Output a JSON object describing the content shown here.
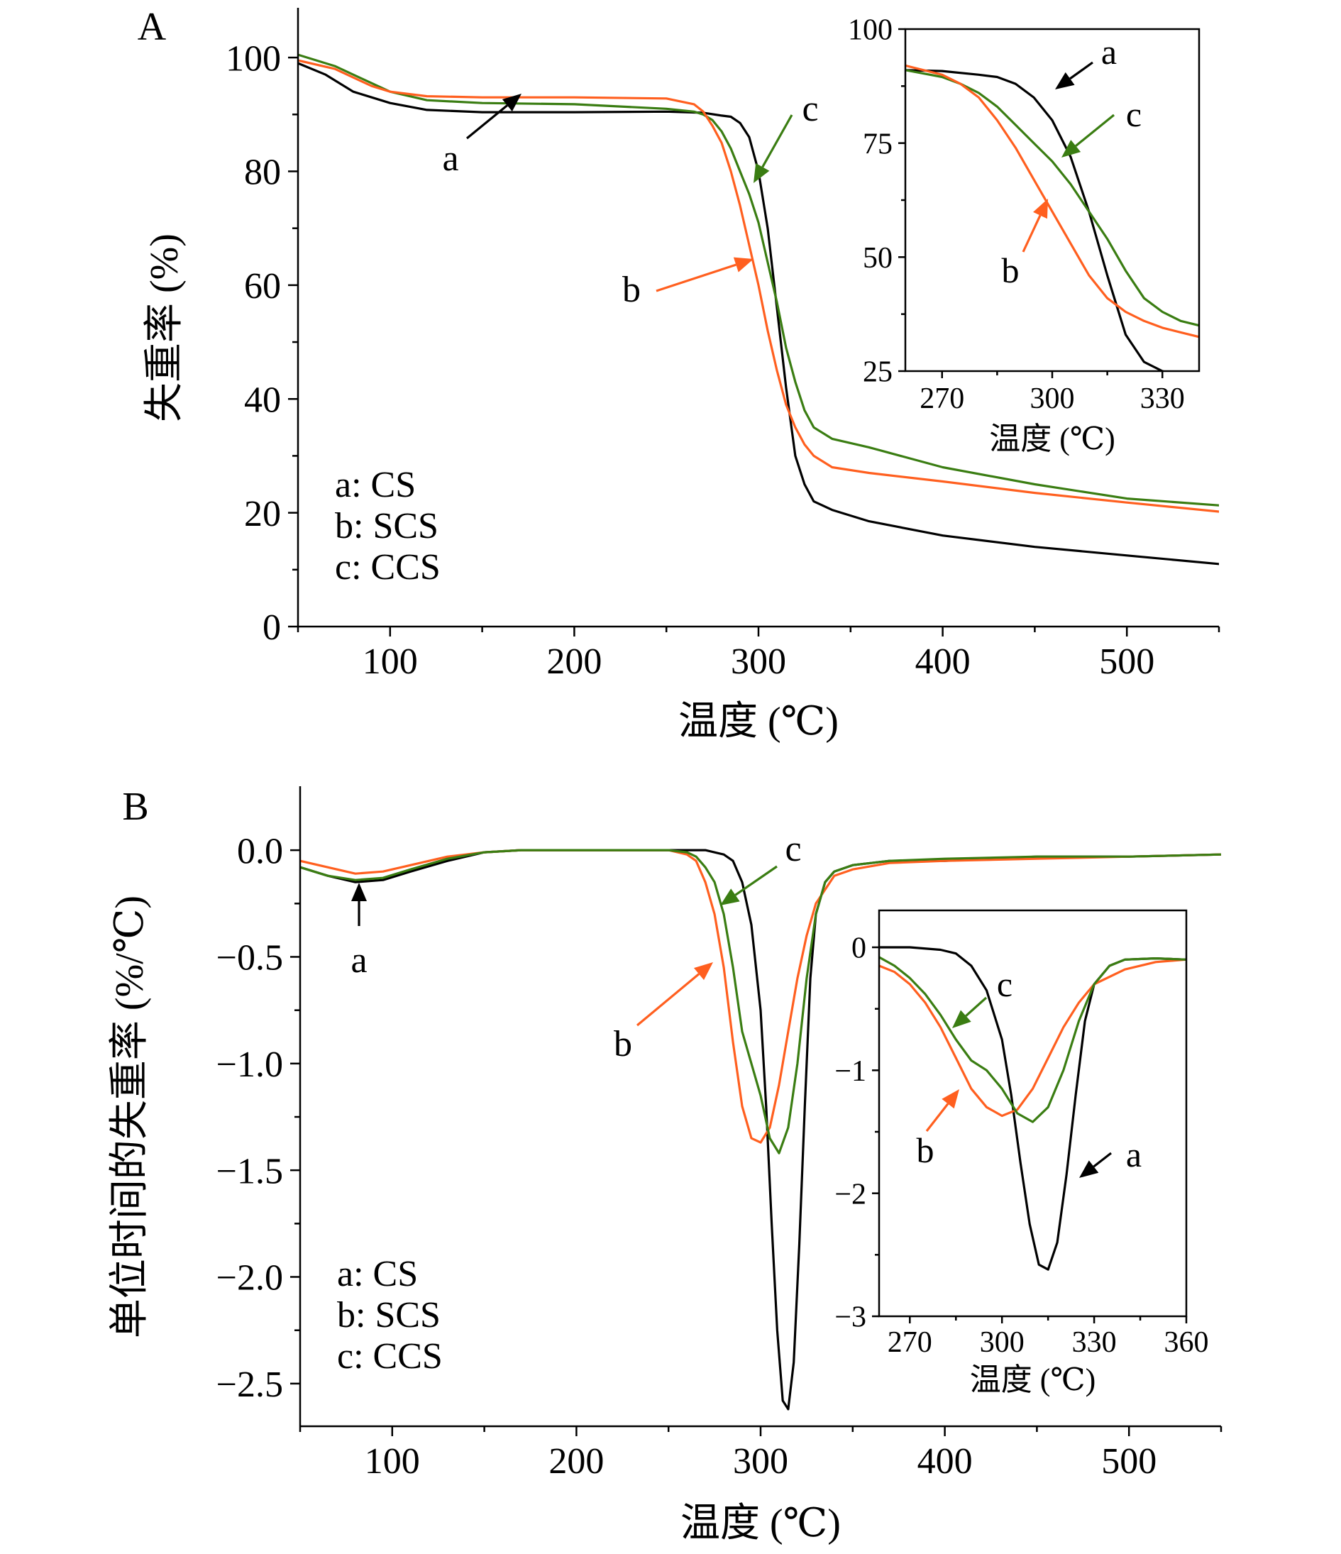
{
  "colors": {
    "a": "#000000",
    "b": "#ff5f1f",
    "c": "#3a7d12"
  },
  "chart_data": [
    {
      "panel": "A",
      "type": "line",
      "xlabel": "温度 (℃)",
      "ylabel": "失重率 (%)",
      "xlim": [
        50,
        550
      ],
      "ylim": [
        0,
        105
      ],
      "xticks": [
        100,
        200,
        300,
        400,
        500
      ],
      "yticks": [
        0,
        20,
        40,
        60,
        80,
        100
      ],
      "legend": [
        "a: CS",
        "b: SCS",
        "c: CCS"
      ],
      "annotations": [
        "a",
        "b",
        "c"
      ],
      "series": [
        {
          "key": "a",
          "x": [
            50,
            65,
            80,
            100,
            120,
            150,
            200,
            250,
            270,
            280,
            285,
            290,
            295,
            300,
            305,
            310,
            315,
            320,
            325,
            330,
            340,
            360,
            400,
            450,
            500,
            550
          ],
          "y": [
            99,
            97,
            94,
            92,
            90.8,
            90.4,
            90.4,
            90.5,
            90.3,
            89.8,
            89.6,
            88.5,
            86,
            80,
            70,
            56,
            42,
            30,
            25,
            22,
            20.5,
            18.5,
            16,
            14,
            12.5,
            11
          ]
        },
        {
          "key": "b",
          "x": [
            50,
            70,
            90,
            100,
            120,
            150,
            200,
            250,
            265,
            270,
            275,
            280,
            285,
            290,
            295,
            300,
            305,
            310,
            315,
            320,
            325,
            330,
            340,
            360,
            400,
            450,
            500,
            550
          ],
          "y": [
            99.5,
            98,
            95,
            94,
            93.2,
            93,
            93,
            92.8,
            91.8,
            90.5,
            88,
            85,
            80,
            74,
            67,
            60,
            52,
            45,
            39,
            35,
            32,
            30,
            28,
            27,
            25.5,
            23.5,
            21.8,
            20.2
          ]
        },
        {
          "key": "c",
          "x": [
            50,
            70,
            90,
            100,
            120,
            150,
            200,
            250,
            265,
            270,
            275,
            280,
            285,
            290,
            295,
            300,
            305,
            310,
            315,
            320,
            325,
            330,
            340,
            360,
            400,
            450,
            500,
            550
          ],
          "y": [
            100.5,
            98.5,
            95.5,
            94,
            92.5,
            92,
            91.8,
            91,
            90.5,
            90,
            89,
            87,
            84,
            80,
            76,
            71,
            64,
            57,
            49,
            43,
            38,
            35,
            33,
            31.5,
            28,
            25,
            22.5,
            21.3
          ]
        }
      ]
    },
    {
      "panel": "A-inset",
      "type": "line",
      "xlabel": "温度 (℃)",
      "xlim": [
        260,
        340
      ],
      "ylim": [
        25,
        100
      ],
      "xticks": [
        270,
        300,
        330
      ],
      "yticks": [
        25,
        50,
        75,
        100
      ],
      "annotations": [
        "a",
        "b",
        "c"
      ],
      "series": [
        {
          "key": "a",
          "x": [
            260,
            270,
            280,
            285,
            290,
            295,
            300,
            305,
            310,
            315,
            320,
            325,
            330,
            335
          ],
          "y": [
            91,
            90.8,
            90,
            89.5,
            88,
            85,
            80,
            72,
            60,
            46,
            33,
            27,
            25,
            24
          ]
        },
        {
          "key": "b",
          "x": [
            260,
            270,
            275,
            280,
            285,
            290,
            295,
            300,
            305,
            310,
            315,
            320,
            325,
            330,
            335,
            340
          ],
          "y": [
            92,
            90,
            88,
            85,
            80,
            74,
            67,
            60,
            53,
            46,
            41,
            38,
            36,
            34.5,
            33.5,
            32.5
          ]
        },
        {
          "key": "c",
          "x": [
            260,
            270,
            275,
            280,
            285,
            290,
            295,
            300,
            305,
            310,
            315,
            320,
            325,
            330,
            335,
            340
          ],
          "y": [
            91,
            89.5,
            88,
            86,
            83,
            79,
            75,
            71,
            66,
            60,
            54,
            47,
            41,
            38,
            36,
            35
          ]
        }
      ]
    },
    {
      "panel": "B",
      "type": "line",
      "xlabel": "温度 (℃)",
      "ylabel": "单位时间的失重率 (%/℃)",
      "xlim": [
        50,
        550
      ],
      "ylim": [
        -2.7,
        0.2
      ],
      "xticks": [
        100,
        200,
        300,
        400,
        500
      ],
      "yticks": [
        0.0,
        -0.5,
        -1.0,
        -1.5,
        -2.0,
        -2.5
      ],
      "ytick_labels": [
        "0.0",
        "−0.5",
        "−1.0",
        "−1.5",
        "−2.0",
        "−2.5"
      ],
      "legend": [
        "a: CS",
        "b: SCS",
        "c: CCS"
      ],
      "annotations": [
        "a",
        "b",
        "c"
      ],
      "series": [
        {
          "key": "a",
          "x": [
            50,
            65,
            80,
            95,
            110,
            130,
            150,
            170,
            200,
            250,
            270,
            280,
            285,
            290,
            295,
            300,
            303,
            306,
            309,
            312,
            315,
            318,
            321,
            324,
            327,
            330,
            335,
            340,
            350,
            370,
            400,
            450,
            500,
            550
          ],
          "y": [
            -0.08,
            -0.12,
            -0.15,
            -0.14,
            -0.1,
            -0.05,
            -0.01,
            0,
            0,
            0,
            0,
            -0.02,
            -0.05,
            -0.15,
            -0.35,
            -0.75,
            -1.2,
            -1.75,
            -2.25,
            -2.58,
            -2.62,
            -2.4,
            -1.85,
            -1.2,
            -0.6,
            -0.3,
            -0.15,
            -0.1,
            -0.07,
            -0.05,
            -0.05,
            -0.03,
            -0.03,
            -0.02
          ]
        },
        {
          "key": "b",
          "x": [
            50,
            65,
            80,
            95,
            110,
            130,
            150,
            170,
            200,
            250,
            260,
            265,
            270,
            275,
            280,
            285,
            290,
            295,
            300,
            305,
            310,
            315,
            320,
            325,
            330,
            340,
            350,
            370,
            400,
            450,
            500,
            550
          ],
          "y": [
            -0.05,
            -0.08,
            -0.11,
            -0.1,
            -0.07,
            -0.03,
            -0.01,
            0,
            0,
            0,
            -0.02,
            -0.05,
            -0.15,
            -0.3,
            -0.55,
            -0.9,
            -1.2,
            -1.35,
            -1.37,
            -1.3,
            -1.1,
            -0.85,
            -0.6,
            -0.4,
            -0.25,
            -0.12,
            -0.09,
            -0.06,
            -0.05,
            -0.04,
            -0.03,
            -0.02
          ]
        },
        {
          "key": "c",
          "x": [
            50,
            65,
            80,
            95,
            110,
            130,
            150,
            170,
            200,
            250,
            260,
            265,
            270,
            275,
            280,
            285,
            290,
            295,
            300,
            305,
            310,
            315,
            320,
            325,
            330,
            335,
            340,
            350,
            370,
            400,
            450,
            500,
            550
          ],
          "y": [
            -0.08,
            -0.12,
            -0.14,
            -0.13,
            -0.09,
            -0.04,
            -0.01,
            0,
            0,
            0,
            -0.01,
            -0.03,
            -0.08,
            -0.15,
            -0.3,
            -0.55,
            -0.85,
            -1.0,
            -1.15,
            -1.35,
            -1.42,
            -1.3,
            -1.0,
            -0.6,
            -0.3,
            -0.15,
            -0.1,
            -0.07,
            -0.05,
            -0.04,
            -0.03,
            -0.03,
            -0.02
          ]
        }
      ]
    },
    {
      "panel": "B-inset",
      "type": "line",
      "xlabel": "温度 (℃)",
      "xlim": [
        260,
        360
      ],
      "ylim": [
        -3,
        0.3
      ],
      "xticks": [
        270,
        300,
        330,
        360
      ],
      "yticks": [
        0,
        -1,
        -2,
        -3
      ],
      "ytick_labels": [
        "0",
        "−1",
        "−2",
        "−3"
      ],
      "annotations": [
        "a",
        "b",
        "c"
      ],
      "series": [
        {
          "key": "a",
          "x": [
            260,
            270,
            280,
            285,
            290,
            295,
            300,
            303,
            306,
            309,
            312,
            315,
            318,
            321,
            324,
            327,
            330,
            335,
            340,
            350,
            360
          ],
          "y": [
            0,
            0,
            -0.02,
            -0.05,
            -0.15,
            -0.35,
            -0.75,
            -1.2,
            -1.75,
            -2.25,
            -2.58,
            -2.62,
            -2.4,
            -1.85,
            -1.2,
            -0.6,
            -0.3,
            -0.15,
            -0.1,
            -0.09,
            -0.1
          ]
        },
        {
          "key": "b",
          "x": [
            260,
            265,
            270,
            275,
            280,
            285,
            290,
            295,
            300,
            305,
            310,
            315,
            320,
            325,
            330,
            340,
            350,
            360
          ],
          "y": [
            -0.15,
            -0.2,
            -0.3,
            -0.45,
            -0.65,
            -0.9,
            -1.15,
            -1.3,
            -1.37,
            -1.32,
            -1.15,
            -0.9,
            -0.65,
            -0.45,
            -0.3,
            -0.18,
            -0.12,
            -0.1
          ]
        },
        {
          "key": "c",
          "x": [
            260,
            265,
            270,
            275,
            280,
            285,
            290,
            295,
            300,
            305,
            310,
            315,
            320,
            325,
            330,
            335,
            340,
            350,
            360
          ],
          "y": [
            -0.08,
            -0.15,
            -0.25,
            -0.38,
            -0.55,
            -0.75,
            -0.92,
            -1.0,
            -1.15,
            -1.35,
            -1.42,
            -1.3,
            -1.0,
            -0.6,
            -0.3,
            -0.15,
            -0.1,
            -0.09,
            -0.1
          ]
        }
      ]
    }
  ],
  "panel_letters": [
    "A",
    "B"
  ]
}
